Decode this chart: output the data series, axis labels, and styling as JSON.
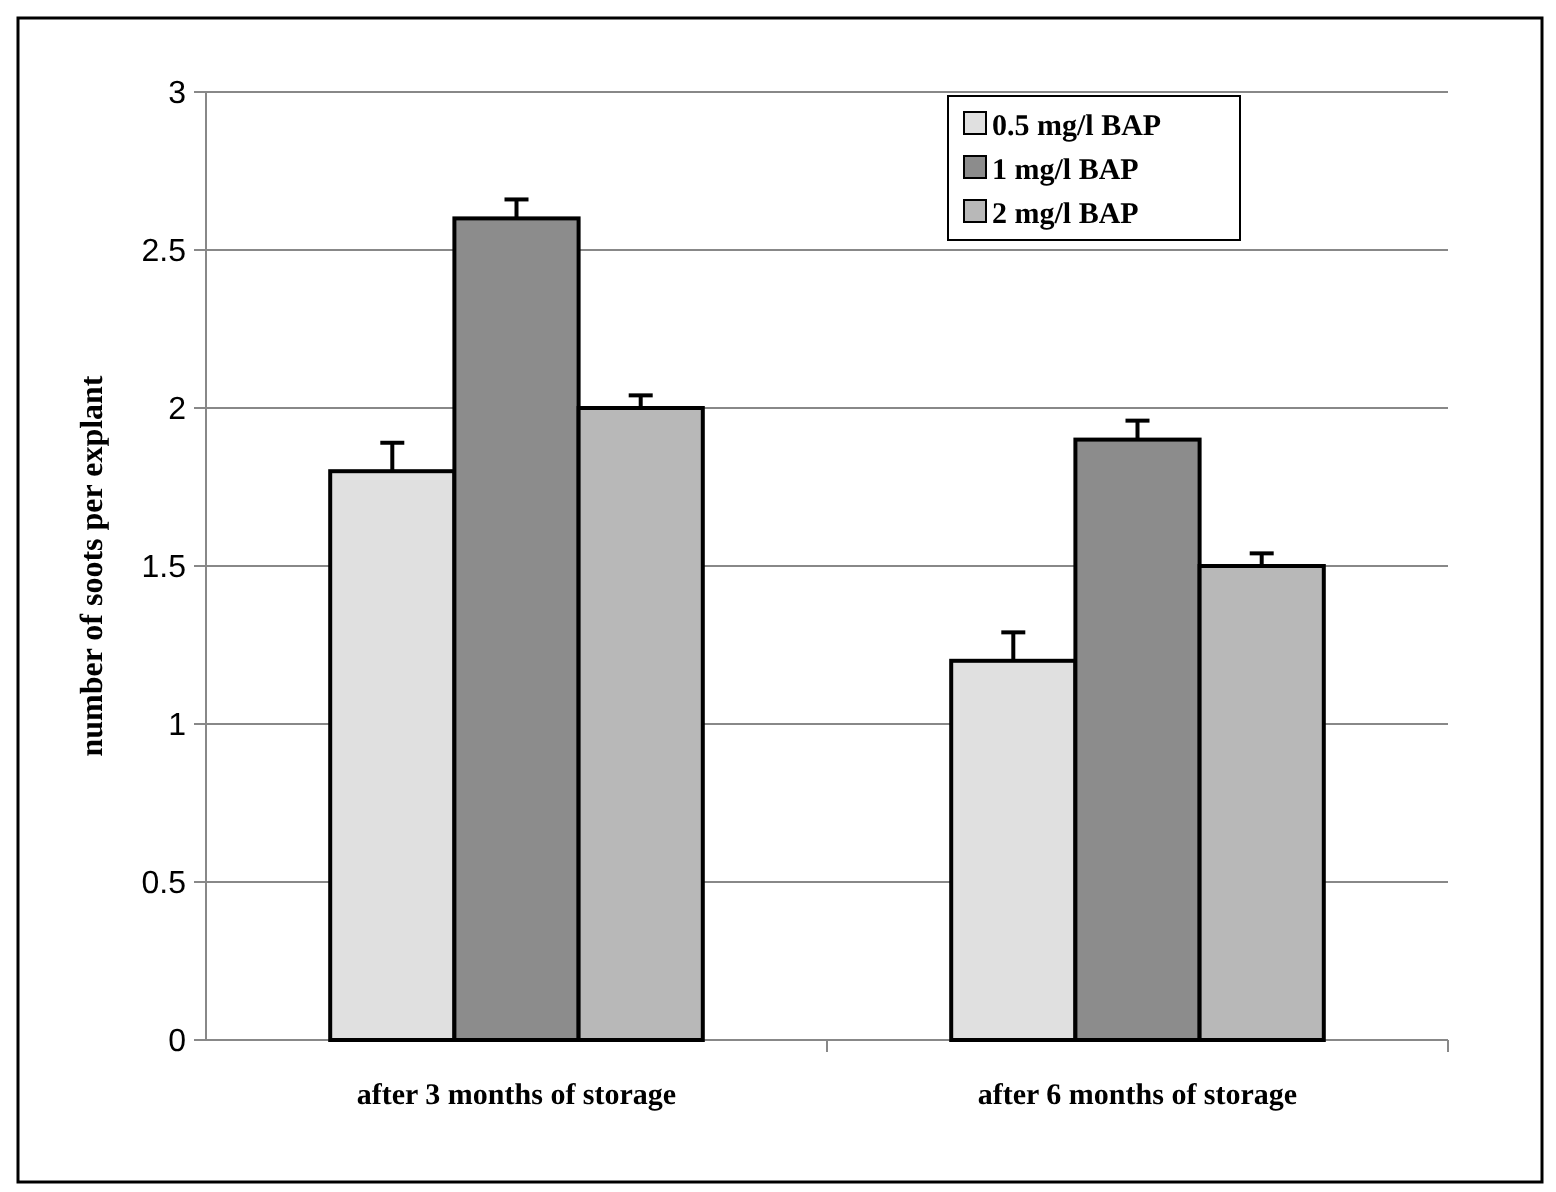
{
  "chart_data": {
    "type": "bar",
    "ylabel": "number of soots per explant",
    "categories": [
      "after 3 months of storage",
      "after 6 months of storage"
    ],
    "series": [
      {
        "name": "0.5 mg/l BAP",
        "color": "#e0e0e0",
        "values": [
          1.8,
          1.2
        ],
        "errors": [
          0.09,
          0.09
        ]
      },
      {
        "name": "1 mg/l BAP",
        "color": "#8c8c8c",
        "values": [
          2.6,
          1.9
        ],
        "errors": [
          0.06,
          0.06
        ]
      },
      {
        "name": "2 mg/l BAP",
        "color": "#b8b8b8",
        "values": [
          2.0,
          1.5
        ],
        "errors": [
          0.04,
          0.04
        ]
      }
    ],
    "ylim": [
      0,
      3
    ],
    "yticks": [
      0,
      0.5,
      1,
      1.5,
      2,
      2.5,
      3
    ],
    "grid": "y",
    "legend": "top right"
  }
}
